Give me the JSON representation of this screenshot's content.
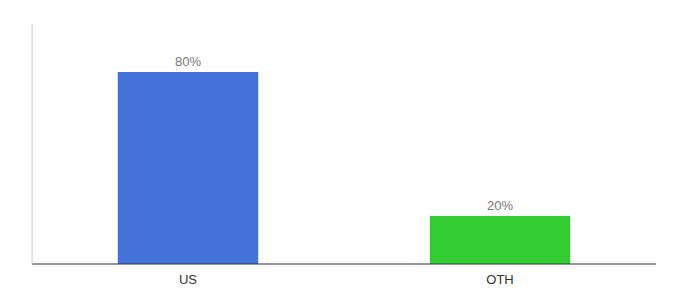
{
  "chart_data": {
    "type": "bar",
    "categories": [
      "US",
      "OTH"
    ],
    "values": [
      80,
      20
    ],
    "value_labels": [
      "80%",
      "20%"
    ],
    "colors": [
      "#4472db",
      "#33cc33"
    ],
    "ylim": [
      0,
      100
    ],
    "data_labels": true,
    "tick_labels": "x"
  }
}
